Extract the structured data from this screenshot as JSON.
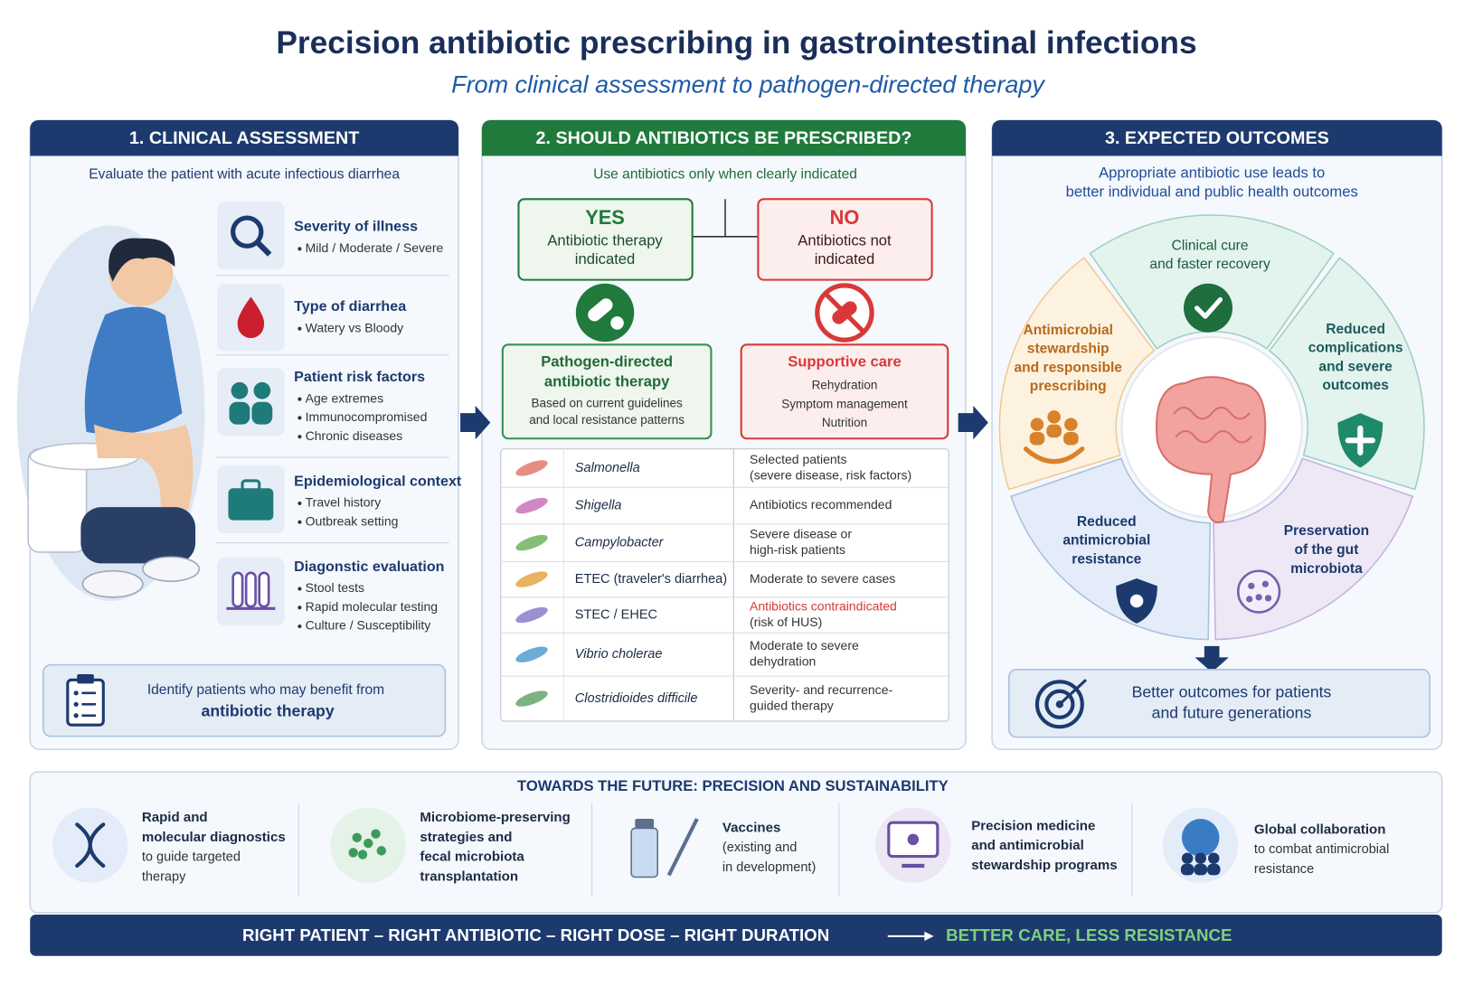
{
  "header": {
    "title": "Precision antibiotic prescribing in gastrointestinal infections",
    "subtitle": "From clinical assessment to pathogen-directed therapy"
  },
  "assessment": {
    "title": "1. CLINICAL ASSESSMENT",
    "intro": "Evaluate the patient with acute infectious diarrhea",
    "items": [
      {
        "title": "Severity of illness",
        "details": [
          "Mild / Moderate / Severe"
        ]
      },
      {
        "title": "Type of diarrhea",
        "details": [
          "Watery vs Bloody"
        ]
      },
      {
        "title": "Patient risk factors",
        "details": [
          "Age extremes",
          "Immunocompromised",
          "Chronic diseases"
        ]
      },
      {
        "title": "Epidemiological context",
        "details": [
          "Travel history",
          "Outbreak setting"
        ]
      },
      {
        "title": "Diagonstic evaluation",
        "details": [
          "Stool tests",
          "Rapid molecular testing",
          "Culture / Susceptibility"
        ]
      }
    ],
    "callout": {
      "text": "Identify patients who may benefit from",
      "emphasis": "antibiotic therapy"
    }
  },
  "decision": {
    "title": "2. SHOULD ANTIBIOTICS BE PRESCRIBED?",
    "intro": "Use antibiotics only when clearly indicated",
    "yes": {
      "label": "YES",
      "text": [
        "Antibiotic therapy",
        "indicated"
      ],
      "action": {
        "title": [
          "Pathogen-directed",
          "antibiotic therapy"
        ],
        "details": [
          "Based on current guidelines",
          "and local resistance patterns"
        ]
      }
    },
    "no": {
      "label": "NO",
      "text": [
        "Antibiotics not",
        "indicated"
      ],
      "action": {
        "title": [
          "Supportive care"
        ],
        "details": [
          "Rehydration",
          "Symptom management",
          "Nutrition"
        ]
      }
    },
    "table": {
      "rows": [
        {
          "pathogen": "Salmonella",
          "italic": true,
          "advice": [
            "Selected patients",
            "(severe disease, risk factors)"
          ]
        },
        {
          "pathogen": "Shigella",
          "italic": true,
          "advice": [
            "Antibiotics recommended"
          ]
        },
        {
          "pathogen": "Campylobacter",
          "italic": true,
          "advice": [
            "Severe disease or",
            "high-risk patients"
          ]
        },
        {
          "pathogen": "ETEC (traveler's diarrhea)",
          "italic": false,
          "advice": [
            "Moderate to severe cases"
          ]
        },
        {
          "pathogen": "STEC / EHEC",
          "italic": false,
          "warning": "Antibiotics contraindicated",
          "advice": [
            "(risk of HUS)"
          ]
        },
        {
          "pathogen": "Vibrio cholerae",
          "italic": true,
          "advice": [
            "Moderate to severe",
            "dehydration"
          ]
        },
        {
          "pathogen": "Clostridioides difficile",
          "italic": true,
          "advice": [
            "Severity- and recurrence-",
            "guided therapy"
          ]
        }
      ]
    }
  },
  "outcomes": {
    "title": "3. EXPECTED OUTCOMES",
    "intro": [
      "Appropriate antibiotic use leads to",
      "better individual and public health outcomes"
    ],
    "segments": [
      {
        "text": [
          "Clinical cure",
          "and faster recovery"
        ]
      },
      {
        "text": [
          "Reduced",
          "complications",
          "and severe",
          "outcomes"
        ]
      },
      {
        "text": [
          "Preservation",
          "of the gut",
          "microbiota"
        ]
      },
      {
        "text": [
          "Reduced",
          "antimicrobial",
          "resistance"
        ]
      },
      {
        "text": [
          "Antimicrobial",
          "stewardship",
          "and responsible",
          "prescribing"
        ]
      }
    ],
    "callout": [
      "Better outcomes for patients",
      "and future generations"
    ]
  },
  "future": {
    "title": "TOWARDS THE FUTURE: PRECISION AND SUSTAINABILITY",
    "items": [
      {
        "title": [
          "Rapid and",
          "molecular diagnostics"
        ],
        "details": [
          "to guide targeted",
          "therapy"
        ]
      },
      {
        "title": [
          "Microbiome-preserving",
          "strategies and",
          "fecal microbiota",
          "transplantation"
        ]
      },
      {
        "title": [
          "Vaccines"
        ],
        "details": [
          "(existing and",
          "in development)"
        ]
      },
      {
        "title": [
          "Precision medicine",
          "and antimicrobial",
          "stewardship programs"
        ]
      },
      {
        "title": [
          "Global collaboration"
        ],
        "details": [
          "to combat antimicrobial",
          "resistance"
        ]
      }
    ]
  },
  "footer": {
    "principles": "RIGHT PATIENT – RIGHT ANTIBIOTIC – RIGHT DOSE – RIGHT DURATION",
    "goal": "BETTER CARE, LESS RESISTANCE"
  }
}
